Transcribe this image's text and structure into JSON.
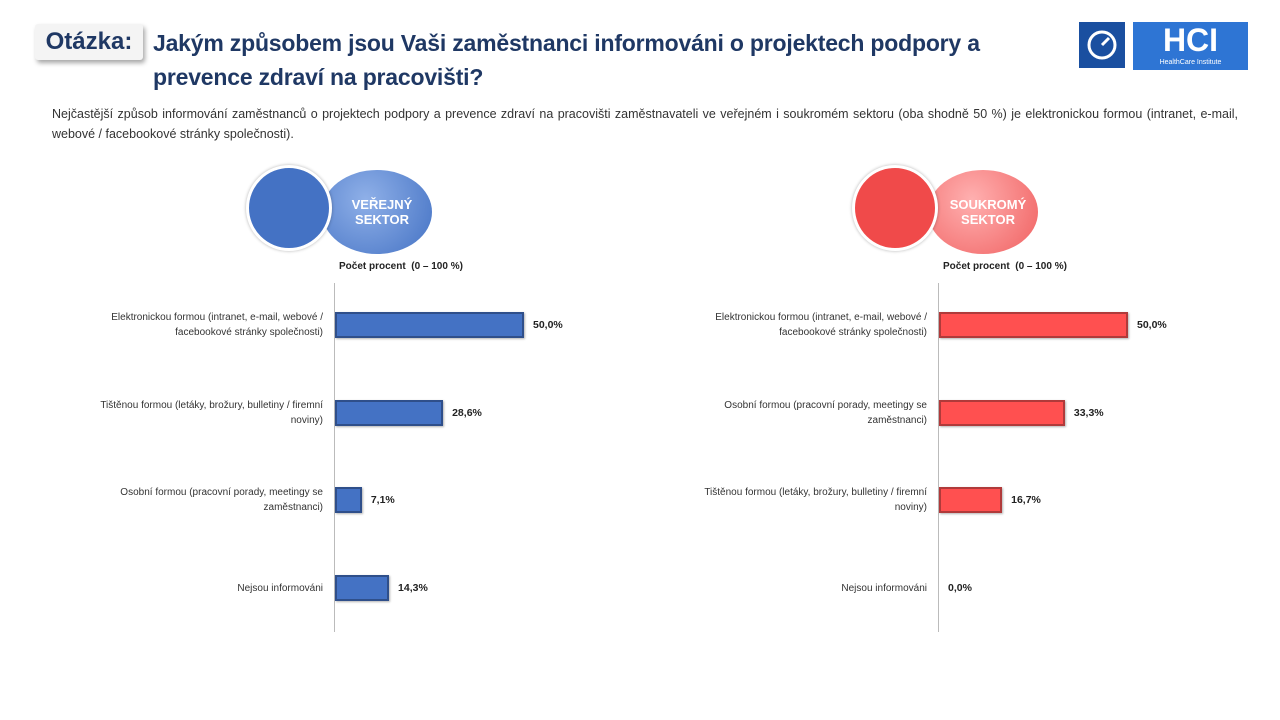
{
  "header": {
    "label": "Otázka:",
    "title": "Jakým způsobem jsou Vaši zaměstnanci informováni o projektech podpory a prevence zdraví na pracovišti?",
    "description": "Nejčastější způsob informování zaměstnanců o projektech podpory a prevence zdraví na pracovišti zaměstnavateli ve veřejném i soukromém sektoru (oba shodně 50 %) je elektronickou formou (intranet, e-mail, webové / facebookové stránky společnosti).",
    "logo": "HCI",
    "logo_subtitle": "HealthCare Institute"
  },
  "chart_data": [
    {
      "type": "bar",
      "orientation": "horizontal",
      "title": "VEŘEJNÝ SEKTOR",
      "xlabel": "Počet procent  (0 – 100 %)",
      "xlim": [
        0,
        100
      ],
      "color": "#4472c4",
      "categories": [
        "Elektronickou formou (intranet, e-mail, webové / facebookové stránky společnosti)",
        "Tištěnou formou (letáky, brožury, bulletiny / firemní noviny)",
        "Osobní formou (pracovní porady, meetingy se zaměstnanci)",
        "Nejsou informováni"
      ],
      "values": [
        50.0,
        28.6,
        7.1,
        14.3
      ],
      "value_labels": [
        "50,0%",
        "28,6%",
        "7,1%",
        "14,3%"
      ]
    },
    {
      "type": "bar",
      "orientation": "horizontal",
      "title": "SOUKROMÝ SEKTOR",
      "xlabel": "Počet procent  (0 – 100 %)",
      "xlim": [
        0,
        100
      ],
      "color": "#ff5050",
      "categories": [
        "Elektronickou formou (intranet, e-mail, webové / facebookové stránky společnosti)",
        "Osobní formou (pracovní porady, meetingy se zaměstnanci)",
        "Tištěnou formou (letáky, brožury, bulletiny / firemní noviny)",
        "Nejsou informováni"
      ],
      "values": [
        50.0,
        33.3,
        16.7,
        0.0
      ],
      "value_labels": [
        "50,0%",
        "33,3%",
        "16,7%",
        "0,0%"
      ]
    }
  ]
}
